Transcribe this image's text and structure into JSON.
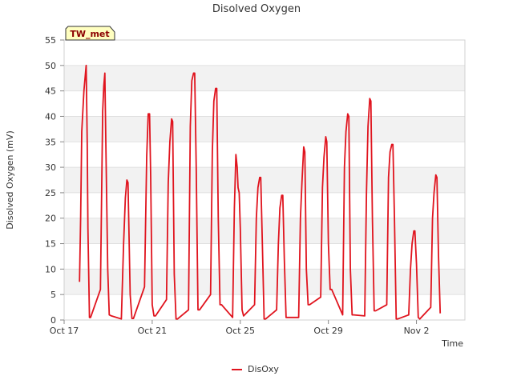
{
  "chart_data": {
    "type": "line",
    "title": "Disolved Oxygen",
    "xlabel": "Time",
    "ylabel": "Disolved Oxygen (mV)",
    "badge": "TW_met",
    "ylim": [
      0,
      55
    ],
    "yticks": [
      0,
      5,
      10,
      15,
      20,
      25,
      30,
      35,
      40,
      45,
      50,
      55
    ],
    "xlim": [
      0,
      18.2
    ],
    "xticks": [
      {
        "value": 0,
        "label": "Oct 17"
      },
      {
        "value": 4,
        "label": "Oct 21"
      },
      {
        "value": 8,
        "label": "Oct 25"
      },
      {
        "value": 12,
        "label": "Oct 29"
      },
      {
        "value": 16,
        "label": "Nov 2"
      }
    ],
    "grid": true,
    "legend": "bottom-center",
    "colors": {
      "series": "#e0141e",
      "band": "#f2f2f2",
      "grid": "#e0e0e0",
      "badge_bg": "#ffffc0"
    },
    "series": [
      {
        "name": "DisOxy",
        "x": [
          0.7,
          0.75,
          0.8,
          0.9,
          1.0,
          1.05,
          1.08,
          1.15,
          1.2,
          1.65,
          1.75,
          1.8,
          1.85,
          1.9,
          1.98,
          2.05,
          2.15,
          2.6,
          2.7,
          2.78,
          2.85,
          2.9,
          3.0,
          3.08,
          3.15,
          3.65,
          3.75,
          3.82,
          3.88,
          3.93,
          4.0,
          4.08,
          4.15,
          4.65,
          4.73,
          4.8,
          4.88,
          4.93,
          5.0,
          5.08,
          5.15,
          5.65,
          5.73,
          5.8,
          5.88,
          5.93,
          6.0,
          6.08,
          6.15,
          6.65,
          6.73,
          6.8,
          6.88,
          6.93,
          7.0,
          7.08,
          7.15,
          7.65,
          7.73,
          7.8,
          7.86,
          7.9,
          7.95,
          8.0,
          8.08,
          8.15,
          8.65,
          8.73,
          8.8,
          8.88,
          8.93,
          9.0,
          9.08,
          9.15,
          9.65,
          9.73,
          9.8,
          9.88,
          9.93,
          10.0,
          10.08,
          10.15,
          10.65,
          10.73,
          10.8,
          10.88,
          10.93,
          11.0,
          11.08,
          11.15,
          11.65,
          11.73,
          11.8,
          11.88,
          11.93,
          12.0,
          12.08,
          12.15,
          12.65,
          12.73,
          12.8,
          12.88,
          12.93,
          13.0,
          13.08,
          13.15,
          13.65,
          13.73,
          13.8,
          13.88,
          13.93,
          14.0,
          14.08,
          14.15,
          14.65,
          14.73,
          14.8,
          14.88,
          14.93,
          15.0,
          15.08,
          15.15,
          15.65,
          15.73,
          15.8,
          15.88,
          15.93,
          16.0,
          16.08,
          16.15,
          16.65,
          16.73,
          16.8,
          16.88,
          16.93,
          17.0,
          17.08
        ],
        "y": [
          7.5,
          20,
          37,
          45,
          50,
          35,
          18,
          0.5,
          0.5,
          6,
          41,
          46,
          48.5,
          33,
          10,
          1,
          0.8,
          0.2,
          15,
          24,
          27.5,
          27,
          5,
          0.3,
          0.3,
          6.5,
          32,
          40.5,
          40.5,
          28,
          3,
          0.8,
          0.8,
          4,
          27,
          35,
          39.5,
          39,
          9,
          0.2,
          0.2,
          2,
          38,
          47,
          48.5,
          48.5,
          30,
          2,
          2,
          5,
          33,
          43,
          45.5,
          45.5,
          20,
          3,
          3,
          0.5,
          22,
          32.5,
          30,
          26,
          25,
          18,
          2,
          0.8,
          3,
          20,
          26,
          28,
          28,
          15,
          0.2,
          0.2,
          2,
          15,
          22,
          24.5,
          24.5,
          12,
          0.5,
          0.5,
          0.5,
          20,
          27,
          34,
          33,
          10,
          3,
          3,
          4.5,
          26,
          32,
          36,
          35,
          15,
          6,
          6,
          1,
          30,
          37,
          40.5,
          40,
          10,
          1,
          1,
          0.8,
          25,
          38,
          43.5,
          43,
          20,
          1.8,
          1.8,
          3,
          28,
          33,
          34.5,
          34.5,
          20,
          0.2,
          0.2,
          1,
          10,
          15,
          17.5,
          17.5,
          11,
          0.5,
          0.2,
          2.5,
          20,
          25,
          28.5,
          28,
          13,
          1.3
        ]
      }
    ]
  }
}
